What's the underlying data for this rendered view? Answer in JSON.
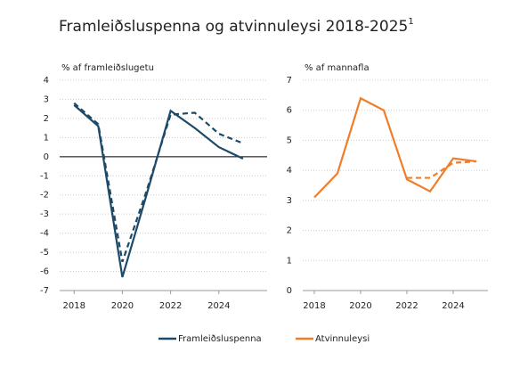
{
  "title": "Framleiðsluspenna og atvinnuleysi 2018-2025",
  "title_note": "1",
  "chart_data": [
    {
      "type": "line",
      "ylabel": "% af framleiðslugetu",
      "x": [
        2018,
        2019,
        2020,
        2021,
        2022,
        2023,
        2024,
        2025
      ],
      "xlim": [
        2017.4,
        2026
      ],
      "xticks": [
        2018,
        2020,
        2022,
        2024
      ],
      "ylim": [
        -7,
        4
      ],
      "yticks": [
        -7,
        -6,
        -5,
        -4,
        -3,
        -2,
        -1,
        0,
        1,
        2,
        3,
        4
      ],
      "grid": true,
      "zero_line": true,
      "series": [
        {
          "name": "Framleiðsluspenna",
          "color": "#1d4a68",
          "dash": false,
          "values": [
            2.7,
            1.6,
            -6.3,
            -2.0,
            2.4,
            1.5,
            0.5,
            -0.1
          ]
        },
        {
          "color": "#1d4a68",
          "dash": true,
          "values": [
            2.8,
            1.7,
            -5.5,
            -1.8,
            2.2,
            2.3,
            1.2,
            0.7
          ]
        }
      ]
    },
    {
      "type": "line",
      "ylabel": "% af mannafla",
      "x": [
        2018,
        2019,
        2020,
        2021,
        2022,
        2023,
        2024,
        2025
      ],
      "xlim": [
        2017.5,
        2025.5
      ],
      "xticks": [
        2018,
        2020,
        2022,
        2024
      ],
      "ylim": [
        0,
        7
      ],
      "yticks": [
        0,
        1,
        2,
        3,
        4,
        5,
        6,
        7
      ],
      "grid": true,
      "zero_line": false,
      "series": [
        {
          "name": "Atvinnuleysi",
          "color": "#f07d2a",
          "dash": false,
          "values": [
            3.1,
            3.9,
            6.4,
            6.0,
            3.7,
            3.3,
            4.4,
            4.3
          ]
        },
        {
          "color": "#f07d2a",
          "dash": true,
          "values": [
            null,
            null,
            null,
            null,
            3.75,
            3.75,
            4.25,
            4.3
          ]
        }
      ]
    }
  ]
}
